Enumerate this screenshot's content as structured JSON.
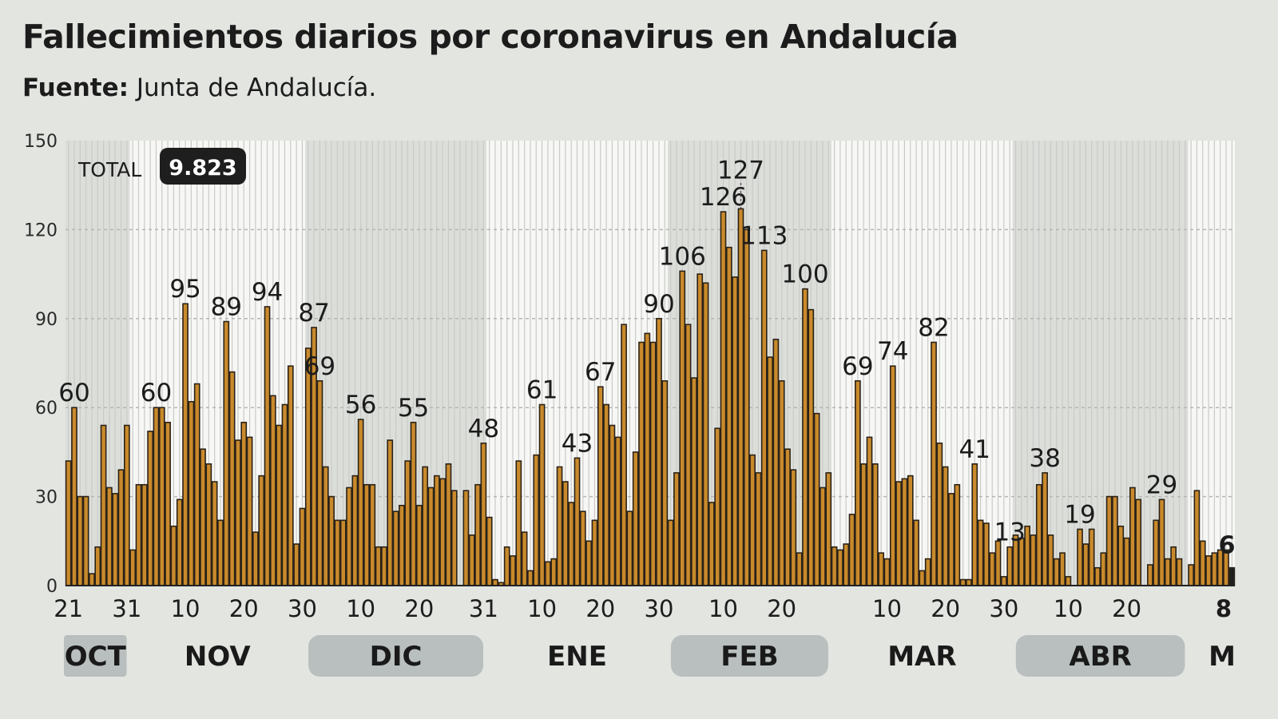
{
  "header": {
    "title": "Fallecimientos diarios por coronavirus en Andalucía",
    "source_label": "Fuente:",
    "source_value": "Junta de Andalucía."
  },
  "chart_data": {
    "type": "bar",
    "title": "Fallecimientos diarios por coronavirus en Andalucía",
    "x_start": "10-21",
    "x_end": "05-08",
    "ylim": [
      0,
      150
    ],
    "yticks": [
      0,
      30,
      60,
      90,
      120,
      150
    ],
    "grid": "horizontal dashed",
    "total_label": "TOTAL",
    "total_value": "9.823",
    "values": [
      42,
      60,
      30,
      30,
      4,
      13,
      54,
      33,
      31,
      39,
      54,
      12,
      34,
      34,
      52,
      60,
      60,
      55,
      20,
      29,
      95,
      62,
      68,
      46,
      41,
      35,
      22,
      89,
      72,
      49,
      55,
      50,
      18,
      37,
      94,
      64,
      54,
      61,
      74,
      14,
      26,
      80,
      87,
      69,
      40,
      30,
      22,
      22,
      33,
      37,
      56,
      34,
      34,
      13,
      13,
      49,
      25,
      27,
      42,
      55,
      27,
      40,
      33,
      37,
      36,
      41,
      32,
      0,
      32,
      17,
      34,
      48,
      23,
      2,
      1,
      13,
      10,
      42,
      18,
      5,
      44,
      61,
      8,
      9,
      40,
      35,
      28,
      43,
      25,
      15,
      22,
      67,
      61,
      54,
      50,
      88,
      25,
      45,
      82,
      85,
      82,
      90,
      69,
      22,
      38,
      106,
      88,
      70,
      105,
      102,
      28,
      53,
      126,
      114,
      104,
      127,
      120,
      44,
      38,
      113,
      77,
      83,
      69,
      46,
      39,
      11,
      100,
      93,
      58,
      33,
      38,
      13,
      12,
      14,
      24,
      69,
      41,
      50,
      41,
      11,
      9,
      74,
      35,
      36,
      37,
      22,
      5,
      9,
      82,
      48,
      40,
      31,
      34,
      2,
      2,
      41,
      22,
      21,
      11,
      15,
      3,
      13,
      17,
      16,
      20,
      17,
      34,
      38,
      17,
      9,
      11,
      3,
      0,
      19,
      14,
      19,
      6,
      11,
      30,
      30,
      20,
      16,
      33,
      29,
      0,
      7,
      22,
      29,
      9,
      13,
      9,
      0,
      7,
      32,
      15,
      10,
      11,
      12,
      12,
      6
    ],
    "annotations": [
      {
        "date": "10-22",
        "label": "60"
      },
      {
        "date": "11-05",
        "label": "60"
      },
      {
        "date": "11-10",
        "label": "95"
      },
      {
        "date": "11-17",
        "label": "89"
      },
      {
        "date": "11-24",
        "label": "94"
      },
      {
        "date": "12-02",
        "label": "87"
      },
      {
        "date": "12-03",
        "label": "69"
      },
      {
        "date": "12-10",
        "label": "56"
      },
      {
        "date": "12-19",
        "label": "55"
      },
      {
        "date": "12-31",
        "label": "48"
      },
      {
        "date": "01-10",
        "label": "61"
      },
      {
        "date": "01-16",
        "label": "43"
      },
      {
        "date": "01-20",
        "label": "67"
      },
      {
        "date": "01-30",
        "label": "90"
      },
      {
        "date": "02-03",
        "label": "106"
      },
      {
        "date": "02-10",
        "label": "126"
      },
      {
        "date": "02-13",
        "label": "127",
        "leader": true
      },
      {
        "date": "02-17",
        "label": "113"
      },
      {
        "date": "02-24",
        "label": "100"
      },
      {
        "date": "03-05",
        "label": "69"
      },
      {
        "date": "03-11",
        "label": "74"
      },
      {
        "date": "03-18",
        "label": "82"
      },
      {
        "date": "03-25",
        "label": "41"
      },
      {
        "date": "03-31",
        "label": "13"
      },
      {
        "date": "04-06",
        "label": "38"
      },
      {
        "date": "04-12",
        "label": "19"
      },
      {
        "date": "04-26",
        "label": "29"
      },
      {
        "date": "05-08",
        "label": "6",
        "bold": true
      }
    ],
    "xticks": [
      {
        "date": "10-21",
        "label": "21"
      },
      {
        "date": "10-31",
        "label": "31"
      },
      {
        "date": "11-10",
        "label": "10"
      },
      {
        "date": "11-20",
        "label": "20"
      },
      {
        "date": "11-30",
        "label": "30"
      },
      {
        "date": "12-10",
        "label": "10"
      },
      {
        "date": "12-20",
        "label": "20"
      },
      {
        "date": "12-31",
        "label": "31"
      },
      {
        "date": "01-10",
        "label": "10"
      },
      {
        "date": "01-20",
        "label": "20"
      },
      {
        "date": "01-30",
        "label": "30"
      },
      {
        "date": "02-10",
        "label": "10"
      },
      {
        "date": "02-20",
        "label": "20"
      },
      {
        "date": "03-10",
        "label": "10"
      },
      {
        "date": "03-20",
        "label": "20"
      },
      {
        "date": "03-30",
        "label": "30"
      },
      {
        "date": "04-10",
        "label": "10"
      },
      {
        "date": "04-20",
        "label": "20"
      },
      {
        "date": "05-08",
        "label": "8",
        "bold": true
      }
    ],
    "months": [
      {
        "label": "OCT",
        "month": 10,
        "shaded": true
      },
      {
        "label": "NOV",
        "month": 11,
        "shaded": false
      },
      {
        "label": "DIC",
        "month": 12,
        "shaded": true
      },
      {
        "label": "ENE",
        "month": 1,
        "shaded": false
      },
      {
        "label": "FEB",
        "month": 2,
        "shaded": true
      },
      {
        "label": "MAR",
        "month": 3,
        "shaded": false
      },
      {
        "label": "ABR",
        "month": 4,
        "shaded": true
      },
      {
        "label": "M",
        "month": 5,
        "shaded": false
      }
    ],
    "colors": {
      "bar": "#c98a2c",
      "bar_outline": "#2a2218",
      "last_bar": "#1f1f1f",
      "shade": "#dcdeda",
      "plot": "#f7f7f5",
      "pill": "#b9bfbf"
    }
  }
}
